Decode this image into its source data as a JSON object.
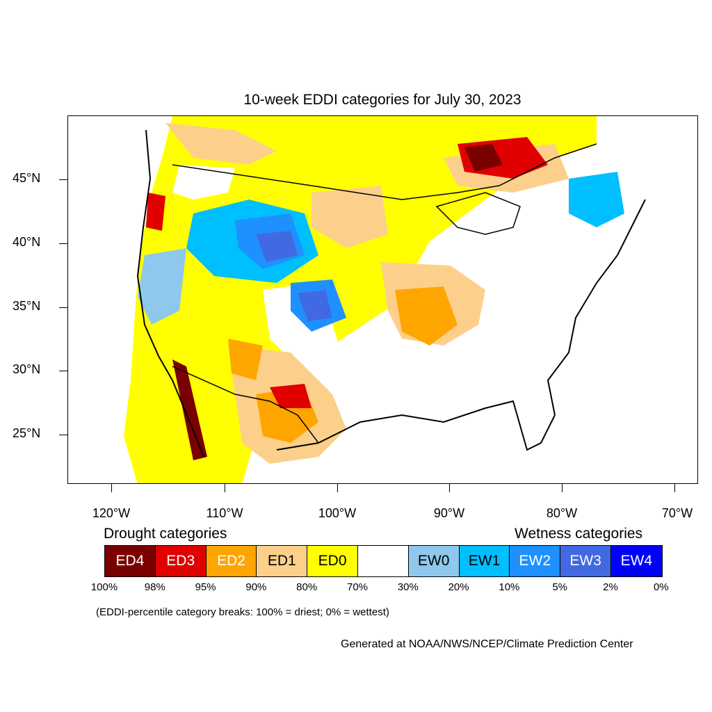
{
  "title": "10-week EDDI categories for July 30, 2023",
  "lat_labels": [
    "45°N",
    "40°N",
    "35°N",
    "30°N",
    "25°N"
  ],
  "lon_labels": [
    "120°W",
    "110°W",
    "100°W",
    "90°W",
    "80°W",
    "70°W"
  ],
  "legend": {
    "drought_heading": "Drought categories",
    "wetness_heading": "Wetness categories",
    "categories": [
      {
        "label": "ED4",
        "color": "#7a0000",
        "text_color": "#ffffff"
      },
      {
        "label": "ED3",
        "color": "#e00000",
        "text_color": "#ffffff"
      },
      {
        "label": "ED2",
        "color": "#ffa500",
        "text_color": "#ffffff"
      },
      {
        "label": "ED1",
        "color": "#fcd08a",
        "text_color": "#000000"
      },
      {
        "label": "ED0",
        "color": "#ffff00",
        "text_color": "#000000"
      },
      {
        "label": "",
        "color": "#ffffff",
        "text_color": "#000000"
      },
      {
        "label": "EW0",
        "color": "#8ec8ec",
        "text_color": "#000000"
      },
      {
        "label": "EW1",
        "color": "#00bfff",
        "text_color": "#000000"
      },
      {
        "label": "EW2",
        "color": "#1e90ff",
        "text_color": "#ffffff"
      },
      {
        "label": "EW3",
        "color": "#4169e1",
        "text_color": "#ffffff"
      },
      {
        "label": "EW4",
        "color": "#0000ff",
        "text_color": "#ffffff"
      }
    ],
    "breaks": [
      "100%",
      "98%",
      "95%",
      "90%",
      "80%",
      "70%",
      "30%",
      "20%",
      "10%",
      "5%",
      "2%",
      "0%"
    ]
  },
  "note": "(EDDI-percentile category breaks: 100% = driest; 0% = wettest)",
  "credit": "Generated at NOAA/NWS/NCEP/Climate Prediction Center"
}
